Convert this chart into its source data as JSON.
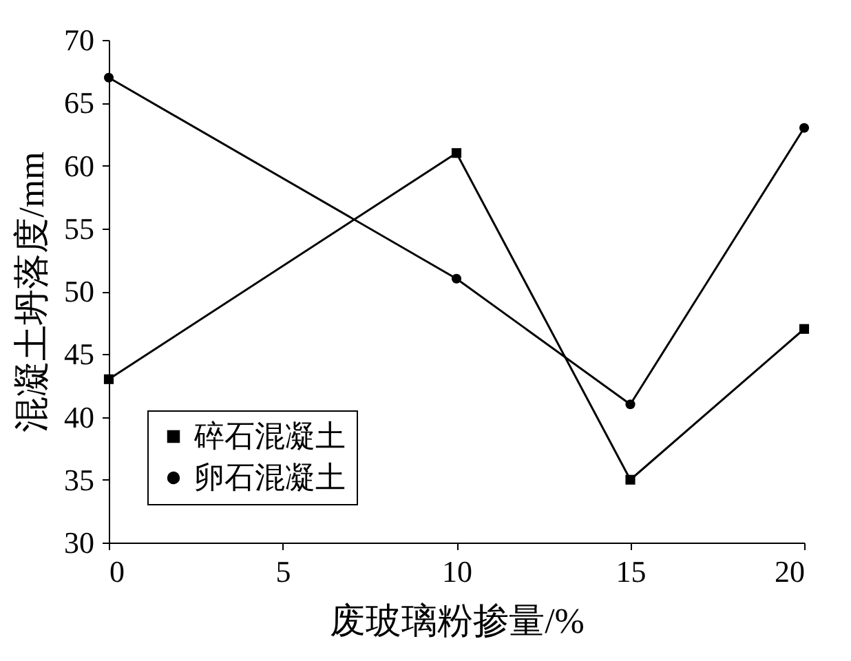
{
  "chart_data": {
    "type": "line",
    "xlabel": "废玻璃粉掺量/%",
    "ylabel": "混凝土坍落度/mm",
    "x": [
      0,
      10,
      15,
      20
    ],
    "series": [
      {
        "name": "碎石混凝土",
        "color": "#000000",
        "marker": "square",
        "values": [
          43,
          61,
          35,
          47
        ]
      },
      {
        "name": "卵石混凝土",
        "color": "#000000",
        "marker": "circle",
        "values": [
          67,
          51,
          41,
          63
        ]
      }
    ],
    "xlim": [
      0,
      20
    ],
    "xticks": [
      0,
      5,
      10,
      15,
      20
    ],
    "ylim": [
      30,
      70
    ],
    "yticks": [
      30,
      35,
      40,
      45,
      50,
      55,
      60,
      65,
      70
    ],
    "grid": false,
    "legend": "bottom left"
  }
}
